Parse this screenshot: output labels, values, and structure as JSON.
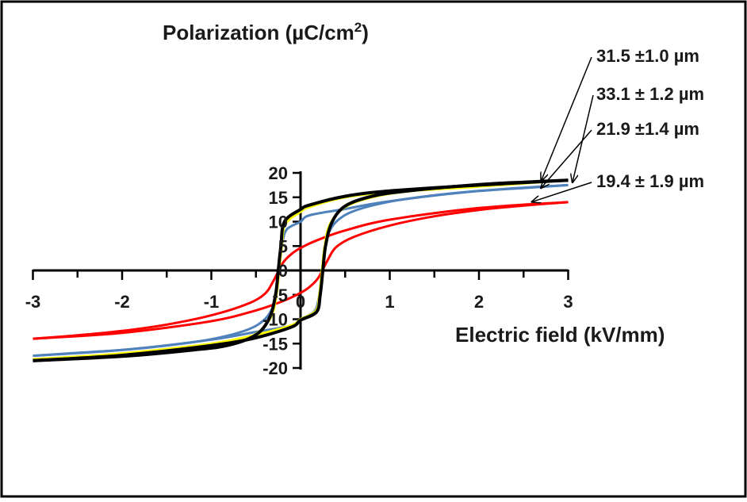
{
  "chart_data": {
    "type": "line",
    "title": "",
    "xlabel": "Electric field (kV/mm)",
    "ylabel_main": "Polarization (µC/cm",
    "ylabel_sup": "2",
    "ylabel_tail": ")",
    "xlim": [
      -3,
      3
    ],
    "ylim": [
      -20,
      20
    ],
    "x_ticks": [
      -3,
      -2,
      -1,
      0,
      1,
      2,
      3
    ],
    "y_ticks": [
      -20,
      -15,
      -10,
      -5,
      0,
      5,
      10,
      15,
      20
    ],
    "grid": false,
    "legend": "none",
    "series": [
      {
        "color": "#ff0000",
        "ascending": [
          [
            -3,
            -14.0
          ],
          [
            -2,
            -12.8
          ],
          [
            -1,
            -10.4
          ],
          [
            -0.5,
            -8.2
          ],
          [
            -0.2,
            -6.3
          ],
          [
            0,
            -4.6
          ],
          [
            0.1,
            -3.4
          ],
          [
            0.2,
            -1.5
          ],
          [
            0.3,
            2.0
          ],
          [
            0.4,
            4.8
          ],
          [
            0.6,
            6.9
          ],
          [
            1,
            9.2
          ],
          [
            1.5,
            11.1
          ],
          [
            2,
            12.4
          ],
          [
            2.5,
            13.3
          ],
          [
            3,
            14.0
          ]
        ],
        "descending": [
          [
            3,
            14.0
          ],
          [
            2,
            12.8
          ],
          [
            1,
            10.4
          ],
          [
            0.5,
            8.2
          ],
          [
            0.2,
            6.3
          ],
          [
            0,
            4.6
          ],
          [
            -0.1,
            3.4
          ],
          [
            -0.2,
            1.5
          ],
          [
            -0.3,
            -2.0
          ],
          [
            -0.4,
            -4.8
          ],
          [
            -0.6,
            -6.9
          ],
          [
            -1,
            -9.2
          ],
          [
            -1.5,
            -11.1
          ],
          [
            -2,
            -12.4
          ],
          [
            -2.5,
            -13.3
          ],
          [
            -3,
            -14.0
          ]
        ]
      },
      {
        "color": "#4f81bd",
        "ascending": [
          [
            -3,
            -17.5
          ],
          [
            -2,
            -16.3
          ],
          [
            -1,
            -14.2
          ],
          [
            -0.5,
            -12.6
          ],
          [
            -0.1,
            -11.3
          ],
          [
            0,
            -10.0
          ],
          [
            0.15,
            -8.5
          ],
          [
            0.2,
            -6.0
          ],
          [
            0.23,
            -2.0
          ],
          [
            0.26,
            3.0
          ],
          [
            0.3,
            7.0
          ],
          [
            0.4,
            10.0
          ],
          [
            0.6,
            12.2
          ],
          [
            1,
            14.1
          ],
          [
            1.5,
            15.4
          ],
          [
            2,
            16.3
          ],
          [
            2.5,
            16.9
          ],
          [
            3,
            17.5
          ]
        ],
        "descending": [
          [
            3,
            17.5
          ],
          [
            2,
            16.3
          ],
          [
            1,
            14.2
          ],
          [
            0.5,
            12.6
          ],
          [
            0.1,
            11.3
          ],
          [
            0,
            10.0
          ],
          [
            -0.15,
            8.5
          ],
          [
            -0.2,
            6.0
          ],
          [
            -0.23,
            2.0
          ],
          [
            -0.26,
            -3.0
          ],
          [
            -0.3,
            -7.0
          ],
          [
            -0.4,
            -10.0
          ],
          [
            -0.6,
            -12.2
          ],
          [
            -1,
            -14.1
          ],
          [
            -1.5,
            -15.4
          ],
          [
            -2,
            -16.3
          ],
          [
            -2.5,
            -16.9
          ],
          [
            -3,
            -17.5
          ]
        ]
      },
      {
        "color": "#ffff00",
        "ascending": [
          [
            -3,
            -18.2
          ],
          [
            -2,
            -17.0
          ],
          [
            -1,
            -15.0
          ],
          [
            -0.5,
            -13.2
          ],
          [
            -0.1,
            -11.2
          ],
          [
            0,
            -10.0
          ],
          [
            0.17,
            -8.3
          ],
          [
            0.21,
            -5.0
          ],
          [
            0.24,
            0.0
          ],
          [
            0.27,
            5.0
          ],
          [
            0.33,
            9.5
          ],
          [
            0.5,
            13.0
          ],
          [
            0.8,
            15.0
          ],
          [
            1.2,
            16.2
          ],
          [
            2,
            17.6
          ],
          [
            2.5,
            18.0
          ],
          [
            3,
            18.5
          ]
        ],
        "descending": [
          [
            3,
            18.5
          ],
          [
            2,
            17.2
          ],
          [
            1,
            16.0
          ],
          [
            0.5,
            15.0
          ],
          [
            0.1,
            13.0
          ],
          [
            0,
            12.0
          ],
          [
            -0.17,
            9.5
          ],
          [
            -0.21,
            5.0
          ],
          [
            -0.24,
            0.0
          ],
          [
            -0.27,
            -5.0
          ],
          [
            -0.33,
            -9.5
          ],
          [
            -0.5,
            -13.0
          ],
          [
            -0.8,
            -15.0
          ],
          [
            -1.2,
            -16.2
          ],
          [
            -2,
            -17.4
          ],
          [
            -3,
            -18.2
          ]
        ]
      },
      {
        "color": "#000000",
        "ascending": [
          [
            -3,
            -18.5
          ],
          [
            -2,
            -17.4
          ],
          [
            -1,
            -15.4
          ],
          [
            -0.5,
            -13.8
          ],
          [
            -0.1,
            -11.6
          ],
          [
            0,
            -10.2
          ],
          [
            0.18,
            -8.5
          ],
          [
            0.22,
            -5.0
          ],
          [
            0.25,
            0.0
          ],
          [
            0.28,
            5.0
          ],
          [
            0.35,
            9.8
          ],
          [
            0.5,
            13.2
          ],
          [
            0.8,
            15.2
          ],
          [
            1.2,
            16.3
          ],
          [
            2,
            17.6
          ],
          [
            2.5,
            18.1
          ],
          [
            3,
            18.5
          ]
        ],
        "descending": [
          [
            3,
            18.5
          ],
          [
            2,
            17.5
          ],
          [
            1,
            16.3
          ],
          [
            0.5,
            15.2
          ],
          [
            0.1,
            13.4
          ],
          [
            0,
            12.5
          ],
          [
            -0.18,
            10.0
          ],
          [
            -0.22,
            5.0
          ],
          [
            -0.25,
            0.0
          ],
          [
            -0.28,
            -5.0
          ],
          [
            -0.35,
            -9.8
          ],
          [
            -0.5,
            -13.2
          ],
          [
            -0.8,
            -15.3
          ],
          [
            -1.2,
            -16.3
          ],
          [
            -2,
            -17.6
          ],
          [
            -3,
            -18.5
          ]
        ]
      }
    ],
    "annotations": [
      {
        "label": "31.5 ±1.0 µm",
        "target": [
          2.7,
          18.5
        ]
      },
      {
        "label": "33.1 ± 1.2 µm",
        "target": [
          3.05,
          18.2
        ]
      },
      {
        "label": "21.9 ±1.4 µm",
        "target": [
          2.7,
          17.0
        ]
      },
      {
        "label": "19.4 ± 1.9 µm",
        "target": [
          2.6,
          14.1
        ]
      }
    ]
  }
}
